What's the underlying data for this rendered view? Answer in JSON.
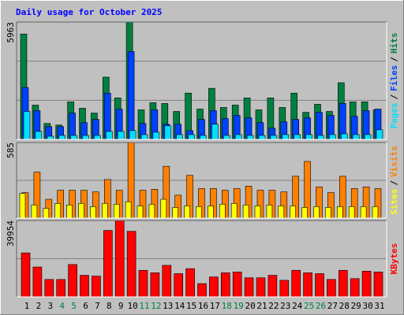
{
  "chart_data": [
    {
      "type": "bar",
      "title": "Daily usage for October 2025",
      "title_color": "#0000ff",
      "ylim": [
        0,
        5963
      ],
      "yticks": [
        5963
      ],
      "legend_separator": "/",
      "series": [
        {
          "name": "Hits",
          "color": "#008040",
          "values": [
            5355,
            1744,
            811,
            730,
            1907,
            1582,
            1339,
            3164,
            2109,
            5963,
            1501,
            1866,
            1825,
            1420,
            2353,
            1541,
            2596,
            1623,
            1744,
            2109,
            1501,
            2109,
            1623,
            2353,
            1379,
            1785,
            1420,
            2880,
            1907,
            1907,
            1501
          ]
        },
        {
          "name": "Files",
          "color": "#0040ff",
          "values": [
            2637,
            1460,
            649,
            649,
            1339,
            852,
            1014,
            2353,
            1541,
            4462,
            811,
            1501,
            771,
            771,
            446,
            1014,
            1460,
            1055,
            1217,
            1095,
            852,
            568,
            892,
            1014,
            1095,
            1379,
            1217,
            1825,
            1176,
            1460,
            1541
          ]
        },
        {
          "name": "Pages",
          "color": "#00e0ff",
          "values": [
            1420,
            406,
            162,
            203,
            203,
            203,
            203,
            406,
            406,
            446,
            243,
            365,
            690,
            243,
            243,
            203,
            771,
            203,
            243,
            203,
            203,
            203,
            243,
            243,
            243,
            203,
            243,
            284,
            243,
            243,
            487
          ]
        }
      ]
    },
    {
      "type": "bar",
      "ylim": [
        0,
        585
      ],
      "yticks": [
        585
      ],
      "legend_separator": "/",
      "series": [
        {
          "name": "Visits",
          "color": "#ff8000",
          "values": [
            197,
            356,
            146,
            216,
            216,
            216,
            203,
            299,
            216,
            585,
            216,
            223,
            401,
            178,
            331,
            229,
            229,
            216,
            229,
            248,
            216,
            216,
            203,
            324,
            439,
            242,
            197,
            324,
            229,
            242,
            229
          ]
        },
        {
          "name": "Sites",
          "color": "#ffff00",
          "values": [
            191,
            102,
            76,
            114,
            102,
            114,
            89,
            114,
            108,
            127,
            95,
            108,
            146,
            83,
            95,
            89,
            95,
            108,
            114,
            102,
            95,
            102,
            95,
            95,
            83,
            89,
            83,
            89,
            89,
            89,
            89
          ]
        }
      ]
    },
    {
      "type": "bar",
      "ylim": [
        0,
        39954
      ],
      "yticks": [
        39954
      ],
      "categories": [
        "1",
        "2",
        "3",
        "4",
        "5",
        "6",
        "7",
        "8",
        "9",
        "10",
        "11",
        "12",
        "13",
        "14",
        "15",
        "16",
        "17",
        "18",
        "19",
        "20",
        "21",
        "22",
        "23",
        "24",
        "25",
        "26",
        "27",
        "28",
        "29",
        "30",
        "31"
      ],
      "category_colors": [
        "#000000",
        "#000000",
        "#000000",
        "#008040",
        "#008040",
        "#000000",
        "#000000",
        "#000000",
        "#000000",
        "#000000",
        "#008040",
        "#008040",
        "#000000",
        "#000000",
        "#000000",
        "#000000",
        "#000000",
        "#008040",
        "#008040",
        "#000000",
        "#000000",
        "#000000",
        "#000000",
        "#000000",
        "#008040",
        "#008040",
        "#000000",
        "#000000",
        "#000000",
        "#000000",
        "#000000"
      ],
      "series": [
        {
          "name": "KBytes",
          "color": "#ff0000",
          "values": [
            23017,
            15634,
            9120,
            9120,
            16937,
            11291,
            10857,
            34743,
            39954,
            34309,
            13897,
            12594,
            16503,
            12160,
            14766,
            6948,
            10423,
            12594,
            13028,
            9989,
            9989,
            11291,
            8686,
            13897,
            12594,
            12160,
            9120,
            13897,
            9554,
            13463,
            13028
          ]
        }
      ]
    }
  ]
}
